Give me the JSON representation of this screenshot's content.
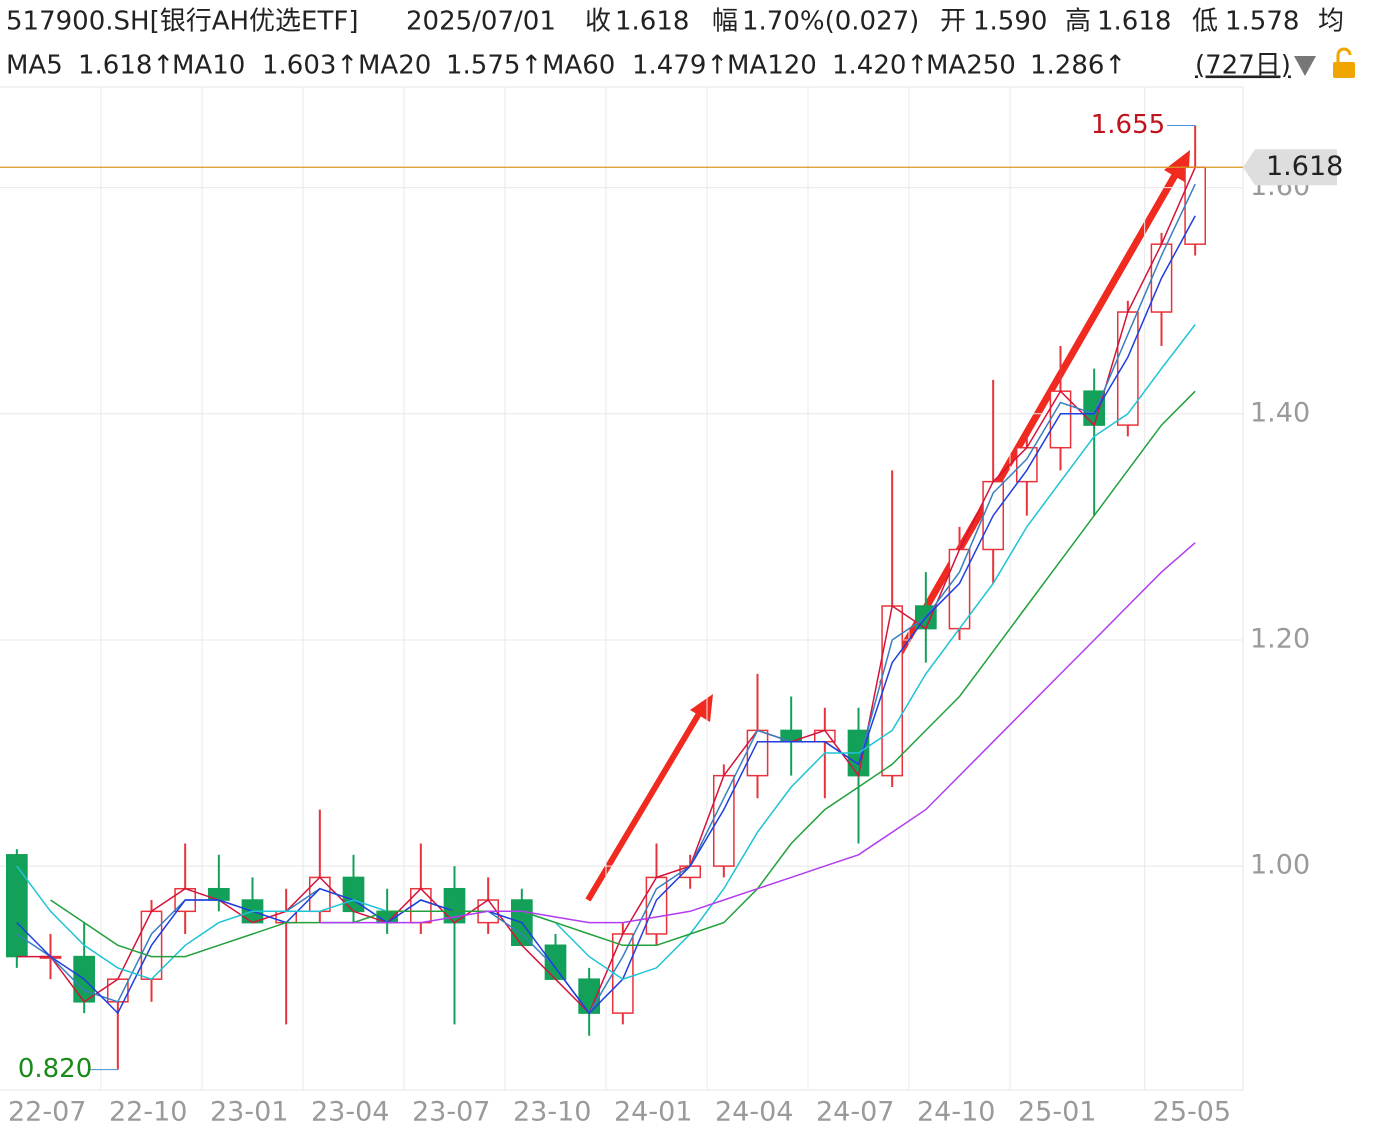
{
  "chart_data": {
    "type": "candlestick",
    "header": {
      "title": "517900.SH[银行AH优选ETF]",
      "date": "2025/07/01",
      "quotes": [
        {
          "label": "收",
          "value": "1.618",
          "color": "#d0121b"
        },
        {
          "label": "幅",
          "value": "1.70%(0.027)",
          "color": "#d0121b"
        },
        {
          "label": "开",
          "value": "1.590",
          "color": "#0f8a2a"
        },
        {
          "label": "高",
          "value": "1.618",
          "color": "#d0121b"
        },
        {
          "label": "低",
          "value": "1.578",
          "color": "#0f8a2a"
        },
        {
          "label": "均"
        }
      ],
      "period": "(727日)"
    },
    "categories": [
      "22-07",
      null,
      null,
      "22-10",
      null,
      null,
      "23-01",
      null,
      null,
      "23-04",
      null,
      null,
      "23-07",
      null,
      null,
      "23-10",
      null,
      null,
      "24-01",
      null,
      null,
      "24-04",
      null,
      null,
      "24-07",
      null,
      null,
      "24-10",
      null,
      null,
      "25-01",
      null,
      null,
      null,
      "25-05",
      null
    ],
    "open": [
      1.01,
      0.92,
      0.92,
      0.88,
      0.9,
      0.96,
      0.98,
      0.97,
      0.95,
      0.96,
      0.99,
      0.96,
      0.95,
      0.98,
      0.95,
      0.97,
      0.93,
      0.9,
      0.87,
      0.94,
      0.99,
      1.0,
      1.08,
      1.12,
      1.11,
      1.12,
      1.08,
      1.23,
      1.21,
      1.28,
      1.34,
      1.37,
      1.42,
      1.39,
      1.49,
      1.55
    ],
    "high": [
      1.015,
      0.94,
      0.95,
      0.9,
      0.97,
      1.02,
      1.01,
      0.99,
      0.98,
      1.05,
      1.01,
      0.98,
      1.02,
      1.0,
      0.99,
      0.98,
      0.94,
      0.91,
      0.95,
      1.02,
      1.01,
      1.09,
      1.17,
      1.15,
      1.14,
      1.14,
      1.35,
      1.26,
      1.3,
      1.43,
      1.38,
      1.46,
      1.44,
      1.5,
      1.56,
      1.655
    ],
    "low": [
      0.91,
      0.9,
      0.87,
      0.82,
      0.88,
      0.94,
      0.96,
      0.95,
      0.86,
      0.95,
      0.95,
      0.94,
      0.94,
      0.86,
      0.94,
      0.93,
      0.9,
      0.85,
      0.86,
      0.93,
      0.98,
      0.99,
      1.06,
      1.08,
      1.06,
      1.02,
      1.07,
      1.18,
      1.2,
      1.25,
      1.31,
      1.35,
      1.31,
      1.38,
      1.46,
      1.54
    ],
    "close": [
      0.92,
      0.92,
      0.88,
      0.9,
      0.96,
      0.98,
      0.97,
      0.95,
      0.96,
      0.99,
      0.96,
      0.95,
      0.98,
      0.95,
      0.97,
      0.93,
      0.9,
      0.87,
      0.94,
      0.99,
      1.0,
      1.08,
      1.12,
      1.11,
      1.12,
      1.08,
      1.23,
      1.21,
      1.28,
      1.34,
      1.37,
      1.42,
      1.39,
      1.49,
      1.55,
      1.618
    ],
    "up_color": "#e8333a",
    "down_color": "#13a058",
    "series": [
      {
        "name": "MA5",
        "label": "1.618↑",
        "color": "#d4143c",
        "values": [
          0.92,
          0.92,
          0.88,
          0.9,
          0.96,
          0.98,
          0.97,
          0.95,
          0.96,
          0.99,
          0.96,
          0.95,
          0.98,
          0.95,
          0.97,
          0.93,
          0.9,
          0.87,
          0.94,
          0.99,
          1.0,
          1.08,
          1.12,
          1.11,
          1.12,
          1.08,
          1.23,
          1.21,
          1.28,
          1.34,
          1.37,
          1.42,
          1.39,
          1.49,
          1.55,
          1.618
        ]
      },
      {
        "name": "MA10",
        "label": "1.603↑",
        "color": "#3a7fc1",
        "values": [
          0.94,
          0.92,
          0.89,
          0.88,
          0.94,
          0.97,
          0.97,
          0.96,
          0.96,
          0.98,
          0.97,
          0.95,
          0.97,
          0.96,
          0.96,
          0.94,
          0.91,
          0.87,
          0.92,
          0.98,
          1.0,
          1.06,
          1.12,
          1.11,
          1.11,
          1.09,
          1.2,
          1.22,
          1.26,
          1.33,
          1.36,
          1.41,
          1.4,
          1.47,
          1.54,
          1.603
        ]
      },
      {
        "name": "MA20",
        "label": "1.575↑",
        "color": "#1f3ee0",
        "values": [
          0.95,
          0.92,
          0.9,
          0.87,
          0.93,
          0.97,
          0.97,
          0.96,
          0.95,
          0.98,
          0.97,
          0.95,
          0.97,
          0.96,
          0.96,
          0.95,
          0.91,
          0.87,
          0.9,
          0.97,
          1.0,
          1.05,
          1.11,
          1.11,
          1.11,
          1.09,
          1.18,
          1.22,
          1.25,
          1.31,
          1.35,
          1.4,
          1.4,
          1.45,
          1.52,
          1.575
        ]
      },
      {
        "name": "MA60",
        "label": "1.479↑",
        "color": "#1ec3d6",
        "values": [
          1.0,
          0.96,
          0.93,
          0.91,
          0.9,
          0.93,
          0.95,
          0.96,
          0.96,
          0.96,
          0.97,
          0.96,
          0.96,
          0.96,
          0.96,
          0.96,
          0.95,
          0.92,
          0.9,
          0.91,
          0.94,
          0.98,
          1.03,
          1.07,
          1.1,
          1.1,
          1.12,
          1.17,
          1.21,
          1.25,
          1.3,
          1.34,
          1.38,
          1.4,
          1.44,
          1.479
        ]
      },
      {
        "name": "MA120",
        "label": "1.420↑",
        "color": "#22a03c",
        "values": [
          null,
          0.97,
          0.95,
          0.93,
          0.92,
          0.92,
          0.93,
          0.94,
          0.95,
          0.95,
          0.95,
          0.96,
          0.96,
          0.96,
          0.96,
          0.96,
          0.95,
          0.94,
          0.93,
          0.93,
          0.94,
          0.95,
          0.98,
          1.02,
          1.05,
          1.07,
          1.09,
          1.12,
          1.15,
          1.19,
          1.23,
          1.27,
          1.31,
          1.35,
          1.39,
          1.42
        ]
      },
      {
        "name": "MA250",
        "label": "1.286↑",
        "color": "#b43cf0",
        "values": [
          null,
          null,
          null,
          null,
          null,
          null,
          null,
          null,
          null,
          0.95,
          0.95,
          0.95,
          0.95,
          0.955,
          0.96,
          0.96,
          0.955,
          0.95,
          0.95,
          0.955,
          0.96,
          0.97,
          0.98,
          0.99,
          1.0,
          1.01,
          1.03,
          1.05,
          1.08,
          1.11,
          1.14,
          1.17,
          1.2,
          1.23,
          1.26,
          1.286
        ]
      }
    ],
    "ylim": [
      0.802,
      1.689
    ],
    "yticks": [
      {
        "value": 1.0,
        "label": "1.00"
      },
      {
        "value": 1.2,
        "label": "1.20"
      },
      {
        "value": 1.4,
        "label": "1.40"
      },
      {
        "value": 1.6,
        "label": "1.60"
      }
    ],
    "grid": true,
    "last_price": 1.618,
    "annotations": [
      {
        "index": 35,
        "value": 1.655,
        "color": "#c0121b"
      },
      {
        "index": 3,
        "value": {
          "value": 0.82,
          "label": "0.820"
        },
        "color": "#1a8a1a"
      }
    ]
  }
}
